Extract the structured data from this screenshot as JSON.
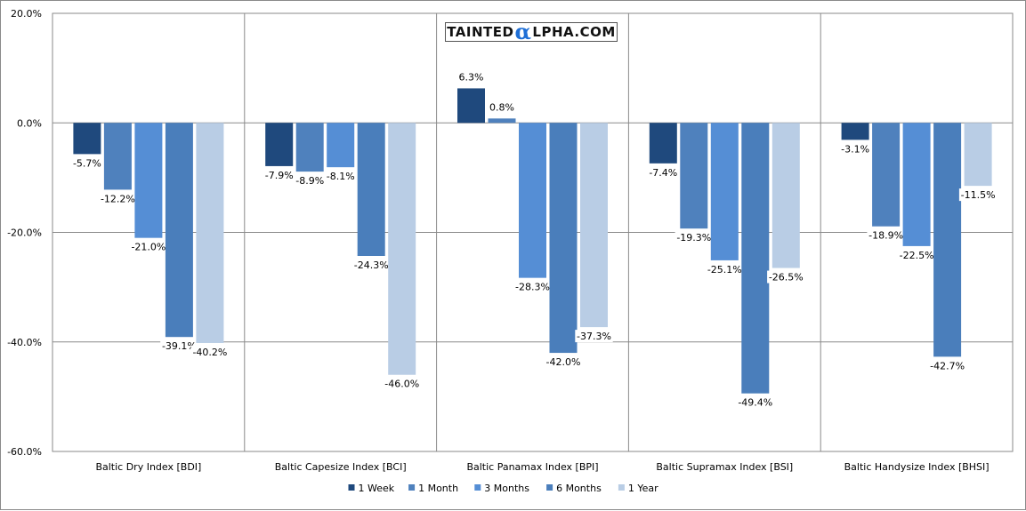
{
  "watermark": {
    "part1": "TAINTED",
    "alpha": "α",
    "part2": "LPHA.COM"
  },
  "chart_data": {
    "type": "bar",
    "title": "",
    "xlabel": "",
    "ylabel": "",
    "ylim": [
      -60,
      20
    ],
    "yticks": [
      20,
      0,
      -20,
      -40,
      -60
    ],
    "ytick_labels": [
      "20.0%",
      "0.0%",
      "-20.0%",
      "-40.0%",
      "-60.0%"
    ],
    "categories": [
      "Baltic Dry Index [BDI]",
      "Baltic Capesize Index [BCI]",
      "Baltic Panamax Index [BPI]",
      "Baltic Supramax Index [BSI]",
      "Baltic Handysize Index [BHSI]"
    ],
    "series": [
      {
        "name": "1 Week",
        "color": "#1f497d",
        "values": [
          -5.7,
          -7.9,
          6.3,
          -7.4,
          -3.1
        ],
        "labels": [
          "-5.7%",
          "-7.9%",
          "6.3%",
          "-7.4%",
          "-3.1%"
        ]
      },
      {
        "name": "1 Month",
        "color": "#4f81bd",
        "values": [
          -12.2,
          -8.9,
          0.8,
          -19.3,
          -18.9
        ],
        "labels": [
          "-12.2%",
          "-8.9%",
          "0.8%",
          "-19.3%",
          "-18.9%"
        ]
      },
      {
        "name": "3 Months",
        "color": "#558ed5",
        "values": [
          -21.0,
          -8.1,
          -28.3,
          -25.1,
          -22.5
        ],
        "labels": [
          "-21.0%",
          "-8.1%",
          "-28.3%",
          "-25.1%",
          "-22.5%"
        ]
      },
      {
        "name": "6 Months",
        "color": "#4a7ebb",
        "values": [
          -39.1,
          -24.3,
          -42.0,
          -49.4,
          -42.7
        ],
        "labels": [
          "-39.1%",
          "-24.3%",
          "-42.0%",
          "-49.4%",
          "-42.7%"
        ]
      },
      {
        "name": "1 Year",
        "color": "#b9cde5",
        "values": [
          -40.2,
          -46.0,
          -37.3,
          -26.5,
          -11.5
        ],
        "labels": [
          "-40.2%",
          "-46.0%",
          "-37.3%",
          "-26.5%",
          "-11.5%"
        ]
      }
    ],
    "legend": "bottom-center",
    "grid": true
  }
}
